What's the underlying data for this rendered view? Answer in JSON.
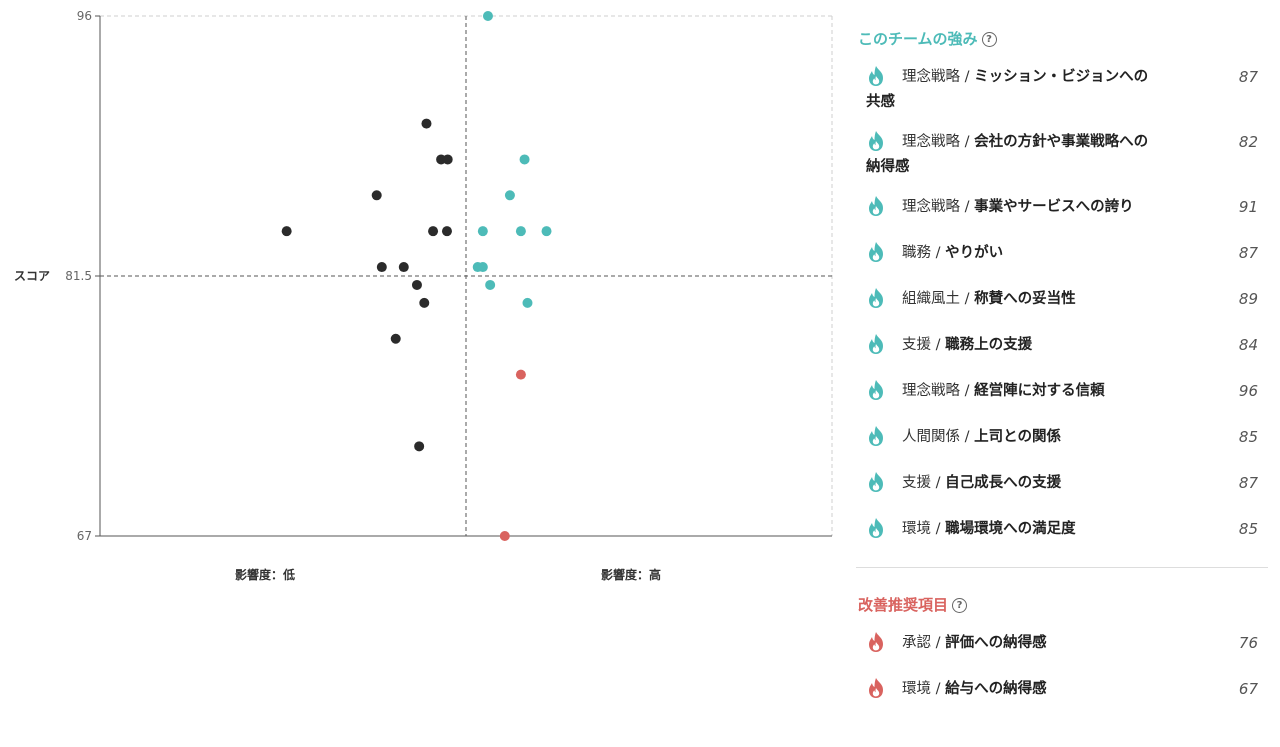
{
  "chart_data": {
    "type": "scatter",
    "ylabel": "スコア",
    "x_labels": [
      "影響度：低",
      "影響度：高"
    ],
    "yticks": [
      67,
      81.5,
      96
    ],
    "ylim": [
      67,
      96
    ],
    "xlim": [
      0,
      1
    ],
    "x_split": 0.5,
    "y_split": 81.5,
    "series": [
      {
        "color": "#2b2b2b",
        "points": [
          {
            "x": 0.255,
            "y": 84
          },
          {
            "x": 0.378,
            "y": 86
          },
          {
            "x": 0.385,
            "y": 82
          },
          {
            "x": 0.415,
            "y": 82
          },
          {
            "x": 0.433,
            "y": 81
          },
          {
            "x": 0.443,
            "y": 80
          },
          {
            "x": 0.446,
            "y": 90
          },
          {
            "x": 0.455,
            "y": 84
          },
          {
            "x": 0.466,
            "y": 88
          },
          {
            "x": 0.475,
            "y": 88
          },
          {
            "x": 0.474,
            "y": 84
          },
          {
            "x": 0.404,
            "y": 78
          },
          {
            "x": 0.436,
            "y": 72
          }
        ]
      },
      {
        "color": "#4dbbb8",
        "points": [
          {
            "x": 0.53,
            "y": 96
          },
          {
            "x": 0.56,
            "y": 86
          },
          {
            "x": 0.58,
            "y": 88
          },
          {
            "x": 0.523,
            "y": 84
          },
          {
            "x": 0.575,
            "y": 84
          },
          {
            "x": 0.61,
            "y": 84
          },
          {
            "x": 0.516,
            "y": 82
          },
          {
            "x": 0.523,
            "y": 82
          },
          {
            "x": 0.533,
            "y": 81
          },
          {
            "x": 0.584,
            "y": 80
          }
        ]
      },
      {
        "color": "#d9635f",
        "points": [
          {
            "x": 0.575,
            "y": 76
          },
          {
            "x": 0.553,
            "y": 67
          }
        ]
      }
    ]
  },
  "strengths": {
    "title": "このチームの強み",
    "help": "?",
    "items": [
      {
        "category": "理念戦略",
        "sub_line1": "ミッション・ビジョンへの",
        "sub_line2": "共感",
        "score": "87"
      },
      {
        "category": "理念戦略",
        "sub_line1": "会社の方針や事業戦略への",
        "sub_line2": "納得感",
        "score": "82"
      },
      {
        "category": "理念戦略",
        "sub_line1": "事業やサービスへの誇り",
        "sub_line2": "",
        "score": "91"
      },
      {
        "category": "職務",
        "sub_line1": "やりがい",
        "sub_line2": "",
        "score": "87"
      },
      {
        "category": "組織風土",
        "sub_line1": "称賛への妥当性",
        "sub_line2": "",
        "score": "89"
      },
      {
        "category": "支援",
        "sub_line1": "職務上の支援",
        "sub_line2": "",
        "score": "84"
      },
      {
        "category": "理念戦略",
        "sub_line1": "経営陣に対する信頼",
        "sub_line2": "",
        "score": "96"
      },
      {
        "category": "人間関係",
        "sub_line1": "上司との関係",
        "sub_line2": "",
        "score": "85"
      },
      {
        "category": "支援",
        "sub_line1": "自己成長への支援",
        "sub_line2": "",
        "score": "87"
      },
      {
        "category": "環境",
        "sub_line1": "職場環境への満足度",
        "sub_line2": "",
        "score": "85"
      }
    ]
  },
  "improvements": {
    "title": "改善推奨項目",
    "help": "?",
    "items": [
      {
        "category": "承認",
        "sub_line1": "評価への納得感",
        "sub_line2": "",
        "score": "76"
      },
      {
        "category": "環境",
        "sub_line1": "給与への納得感",
        "sub_line2": "",
        "score": "67"
      }
    ]
  },
  "colors": {
    "strength": "#4dbbb8",
    "improve": "#d9635f",
    "neutral": "#2b2b2b"
  },
  "icons": {
    "item": "flame-icon",
    "help": "question-circle-icon"
  }
}
